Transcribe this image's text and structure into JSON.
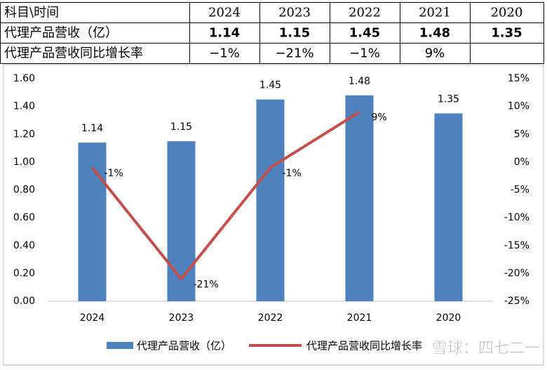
{
  "table": {
    "header": [
      "科目\\时间",
      "2024",
      "2023",
      "2022",
      "2021",
      "2020"
    ],
    "rows": [
      [
        "代理产品营收（亿）",
        "1.14",
        "1.15",
        "1.45",
        "1.48",
        "1.35"
      ],
      [
        "代理产品营收同比增长率",
        "−1%",
        "−21%",
        "−1%",
        "9%",
        null
      ]
    ]
  },
  "chart_data": {
    "type": "bar_line",
    "categories": [
      "2024",
      "2023",
      "2022",
      "2021",
      "2020"
    ],
    "series": [
      {
        "name": "代理产品营收（亿）",
        "type": "bar",
        "color": "#4f81bd",
        "values": [
          1.14,
          1.15,
          1.45,
          1.48,
          1.35
        ]
      },
      {
        "name": "代理产品营收同比增长率",
        "type": "line",
        "axis": "y2",
        "color": "#c0504d",
        "values": [
          -1,
          -21,
          -1,
          9,
          null
        ],
        "value_labels": [
          "-1%",
          "-21%",
          "-1%",
          "9%",
          null
        ]
      }
    ],
    "ylim": [
      0,
      1.6
    ],
    "yticks": [
      {
        "value": 0,
        "label": "0.00"
      },
      {
        "value": 0.2,
        "label": "0.20"
      },
      {
        "value": 0.4,
        "label": "0.40"
      },
      {
        "value": 0.6,
        "label": "0.60"
      },
      {
        "value": 0.8,
        "label": "0.80"
      },
      {
        "value": 1,
        "label": "1.00"
      },
      {
        "value": 1.2,
        "label": "1.20"
      },
      {
        "value": 1.4,
        "label": "1.40"
      },
      {
        "value": 1.6,
        "label": "1.60"
      }
    ],
    "y2lim": [
      -25,
      15
    ],
    "y2ticks": [
      {
        "value": -25,
        "label": "-25%"
      },
      {
        "value": -20,
        "label": "-20%"
      },
      {
        "value": -15,
        "label": "-15%"
      },
      {
        "value": -10,
        "label": "-10%"
      },
      {
        "value": -5,
        "label": "-5%"
      },
      {
        "value": 0,
        "label": "0%"
      },
      {
        "value": 5,
        "label": "5%"
      },
      {
        "value": 10,
        "label": "10%"
      },
      {
        "value": 15,
        "label": "15%"
      }
    ],
    "legend": "bottom",
    "watermark": "雪球：四七二一"
  }
}
